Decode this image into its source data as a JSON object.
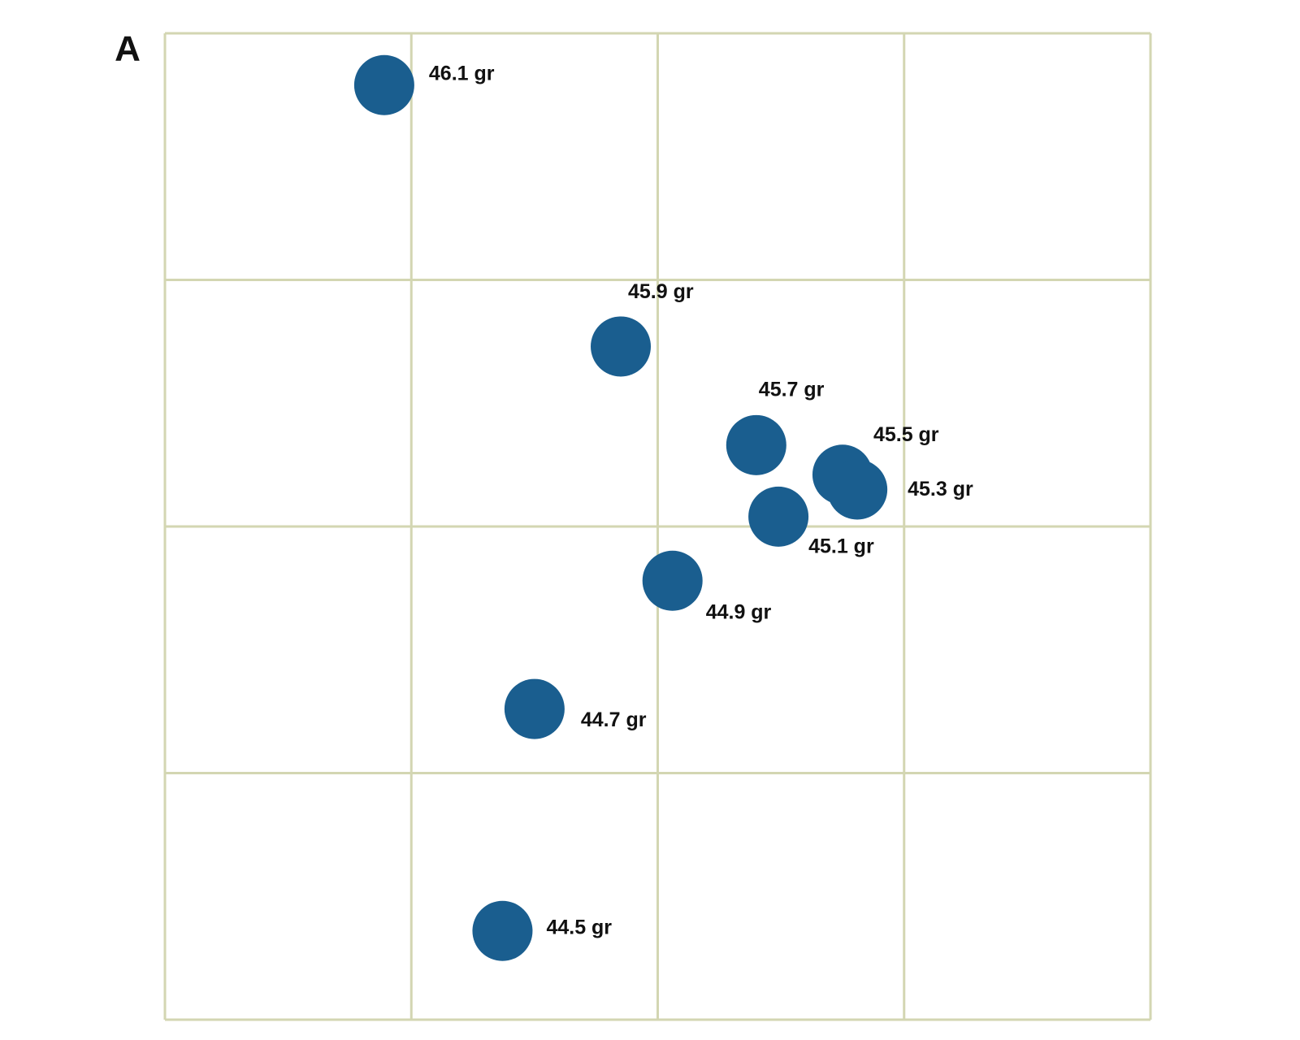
{
  "chart_data": {
    "type": "scatter",
    "panel_label": "A",
    "x": [
      0.89,
      1.85,
      2.4,
      2.75,
      2.81,
      2.49,
      2.06,
      1.5,
      1.37
    ],
    "y": [
      3.79,
      2.73,
      2.33,
      2.21,
      2.15,
      2.04,
      1.78,
      1.26,
      0.36
    ],
    "values": [
      46.1,
      45.9,
      45.7,
      45.5,
      45.3,
      45.1,
      44.9,
      44.7,
      44.5
    ],
    "value_labels": [
      "46.1 gr",
      "45.9 gr",
      "45.7 gr",
      "45.5 gr",
      "45.3 gr",
      "45.1 gr",
      "44.9 gr",
      "44.7 gr",
      "44.5 gr"
    ],
    "color": "#1a5e8f",
    "grid_color": "#d3d6b2",
    "xlim": [
      0,
      4
    ],
    "ylim": [
      0,
      4
    ],
    "xticks": [
      0,
      1,
      2,
      3,
      4
    ],
    "yticks": [
      0,
      1,
      2,
      3,
      4
    ],
    "grid": true
  }
}
